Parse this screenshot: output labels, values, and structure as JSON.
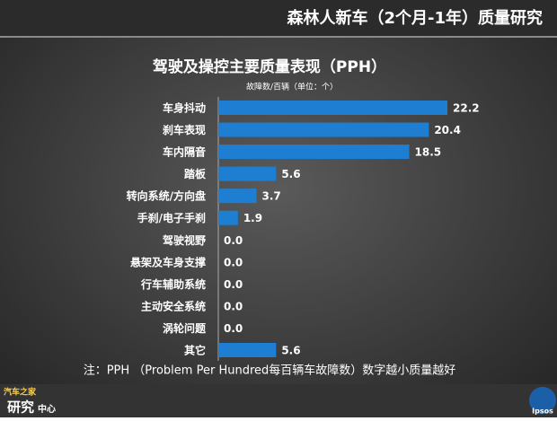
{
  "header": {
    "title": "森林人新车（2个月-1年）质量研究"
  },
  "chart_data": {
    "type": "bar",
    "orientation": "horizontal",
    "title": "驾驶及操控主要质量表现（PPH）",
    "subtitle": "故障数/百辆（单位：个）",
    "categories": [
      "车身抖动",
      "刹车表现",
      "车内隔音",
      "踏板",
      "转向系统/方向盘",
      "手刹/电子手刹",
      "驾驶视野",
      "悬架及车身支撑",
      "行车辅助系统",
      "主动安全系统",
      "涡轮问题",
      "其它"
    ],
    "values": [
      22.2,
      20.4,
      18.5,
      5.6,
      3.7,
      1.9,
      0,
      0,
      0,
      0,
      0,
      5.6
    ],
    "value_labels": [
      "22.2",
      "20.4",
      "18.5",
      "5.6",
      "3.7",
      "1.9",
      "0.0",
      "0.0",
      "0.0",
      "0.0",
      "0.0",
      "5.6"
    ],
    "color": "#1e7fd2"
  },
  "footnote": "注：PPH （Problem Per Hundred每百辆车故障数）数字越小质量越好",
  "logos": {
    "left_top": "汽车之家",
    "left_main": "研究",
    "left_sub": "中心",
    "right": "Ipsos"
  }
}
